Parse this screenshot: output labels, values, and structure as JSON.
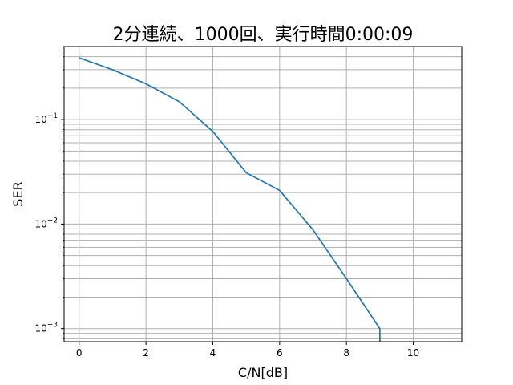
{
  "chart_data": {
    "type": "line",
    "title": "2分連続、1000回、実行時間0:00:09",
    "xlabel": "C/N[dB]",
    "ylabel": "SER",
    "xlim": [
      -0.45,
      11.45
    ],
    "ylim": [
      0.00075,
      0.5
    ],
    "xscale": "linear",
    "yscale": "log",
    "grid": true,
    "legend": "none",
    "xticks": [
      0,
      2,
      4,
      6,
      8,
      10
    ],
    "xtick_labels": [
      "0",
      "2",
      "4",
      "6",
      "8",
      "10"
    ],
    "yticks": [
      0.001,
      0.01,
      0.1
    ],
    "ytick_labels": [
      "10^-3",
      "10^-2",
      "10^-1"
    ],
    "series": [
      {
        "color": "#1f77b4",
        "x": [
          0,
          1,
          2,
          3,
          4,
          5,
          6,
          7,
          8,
          9,
          9
        ],
        "y": [
          0.39,
          0.3,
          0.22,
          0.148,
          0.077,
          0.031,
          0.021,
          0.0088,
          0.003,
          0.001,
          0.0007
        ]
      }
    ]
  }
}
